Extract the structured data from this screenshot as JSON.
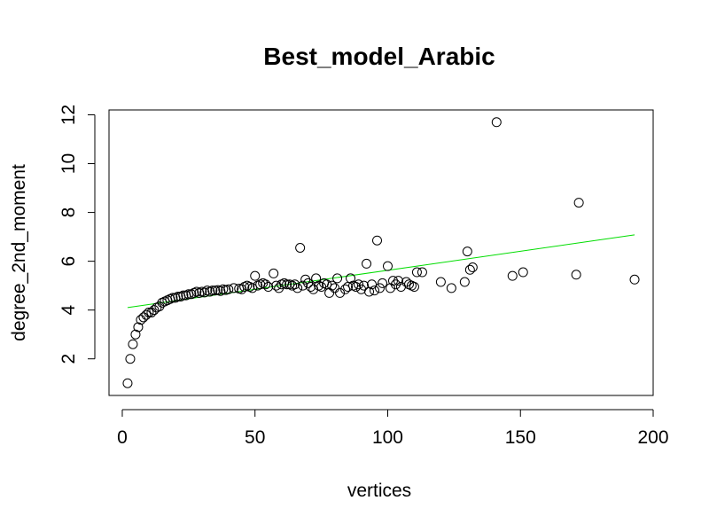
{
  "chart_data": {
    "type": "scatter",
    "title": "Best_model_Arabic",
    "xlabel": "vertices",
    "ylabel": "degree_2nd_moment",
    "xlim": [
      -5,
      200
    ],
    "ylim": [
      0.5,
      12.2
    ],
    "x_ticks": [
      "0",
      "50",
      "100",
      "150",
      "200"
    ],
    "y_ticks": [
      "2",
      "4",
      "6",
      "8",
      "10",
      "12"
    ],
    "grid": false,
    "legend": "none",
    "colors": {
      "points": "#000000",
      "fit_line": "#00dd00",
      "axes": "#000000"
    },
    "points": [
      [
        2,
        1.0
      ],
      [
        3,
        2.0
      ],
      [
        4,
        2.6
      ],
      [
        5,
        3.0
      ],
      [
        6,
        3.3
      ],
      [
        7,
        3.6
      ],
      [
        8,
        3.7
      ],
      [
        9,
        3.8
      ],
      [
        10,
        3.9
      ],
      [
        11,
        3.9
      ],
      [
        12,
        4.0
      ],
      [
        13,
        4.1
      ],
      [
        14,
        4.15
      ],
      [
        15,
        4.3
      ],
      [
        16,
        4.35
      ],
      [
        17,
        4.4
      ],
      [
        18,
        4.45
      ],
      [
        19,
        4.5
      ],
      [
        20,
        4.5
      ],
      [
        21,
        4.55
      ],
      [
        22,
        4.55
      ],
      [
        23,
        4.6
      ],
      [
        24,
        4.6
      ],
      [
        25,
        4.65
      ],
      [
        26,
        4.65
      ],
      [
        27,
        4.7
      ],
      [
        28,
        4.75
      ],
      [
        29,
        4.7
      ],
      [
        30,
        4.75
      ],
      [
        31,
        4.72
      ],
      [
        32,
        4.8
      ],
      [
        33,
        4.75
      ],
      [
        34,
        4.8
      ],
      [
        35,
        4.8
      ],
      [
        36,
        4.82
      ],
      [
        37,
        4.78
      ],
      [
        38,
        4.85
      ],
      [
        39,
        4.82
      ],
      [
        40,
        4.85
      ],
      [
        42,
        4.9
      ],
      [
        44,
        4.88
      ],
      [
        45,
        4.85
      ],
      [
        46,
        4.95
      ],
      [
        47,
        5.0
      ],
      [
        48,
        4.95
      ],
      [
        49,
        4.9
      ],
      [
        50,
        5.4
      ],
      [
        51,
        5.0
      ],
      [
        52,
        5.05
      ],
      [
        53,
        5.1
      ],
      [
        54,
        5.05
      ],
      [
        55,
        4.95
      ],
      [
        57,
        5.5
      ],
      [
        58,
        5.0
      ],
      [
        59,
        4.9
      ],
      [
        60,
        5.05
      ],
      [
        61,
        5.1
      ],
      [
        62,
        5.05
      ],
      [
        63,
        5.05
      ],
      [
        64,
        5.0
      ],
      [
        65,
        5.05
      ],
      [
        66,
        4.9
      ],
      [
        67,
        6.55
      ],
      [
        68,
        5.0
      ],
      [
        69,
        5.25
      ],
      [
        70,
        5.1
      ],
      [
        71,
        4.95
      ],
      [
        72,
        4.85
      ],
      [
        73,
        5.3
      ],
      [
        74,
        5.0
      ],
      [
        75,
        4.95
      ],
      [
        76,
        5.1
      ],
      [
        77,
        5.05
      ],
      [
        78,
        4.7
      ],
      [
        79,
        5.0
      ],
      [
        80,
        4.9
      ],
      [
        81,
        5.3
      ],
      [
        82,
        4.7
      ],
      [
        84,
        4.85
      ],
      [
        85,
        4.95
      ],
      [
        86,
        5.3
      ],
      [
        87,
        5.0
      ],
      [
        88,
        4.95
      ],
      [
        89,
        5.05
      ],
      [
        90,
        4.85
      ],
      [
        91,
        5.0
      ],
      [
        92,
        5.9
      ],
      [
        93,
        4.75
      ],
      [
        94,
        5.05
      ],
      [
        95,
        4.8
      ],
      [
        96,
        6.85
      ],
      [
        97,
        4.9
      ],
      [
        98,
        5.1
      ],
      [
        100,
        5.8
      ],
      [
        101,
        4.9
      ],
      [
        102,
        5.2
      ],
      [
        103,
        5.05
      ],
      [
        104,
        5.2
      ],
      [
        105,
        4.95
      ],
      [
        107,
        5.15
      ],
      [
        108,
        5.05
      ],
      [
        109,
        5.0
      ],
      [
        110,
        4.95
      ],
      [
        111,
        5.55
      ],
      [
        113,
        5.55
      ],
      [
        120,
        5.15
      ],
      [
        124,
        4.9
      ],
      [
        129,
        5.15
      ],
      [
        130,
        6.4
      ],
      [
        131,
        5.65
      ],
      [
        132,
        5.75
      ],
      [
        141,
        11.7
      ],
      [
        147,
        5.4
      ],
      [
        151,
        5.55
      ],
      [
        171,
        5.45
      ],
      [
        172,
        8.4
      ],
      [
        193,
        5.25
      ]
    ],
    "fit_line": {
      "x": [
        2,
        193
      ],
      "y": [
        4.1,
        7.08
      ]
    }
  }
}
